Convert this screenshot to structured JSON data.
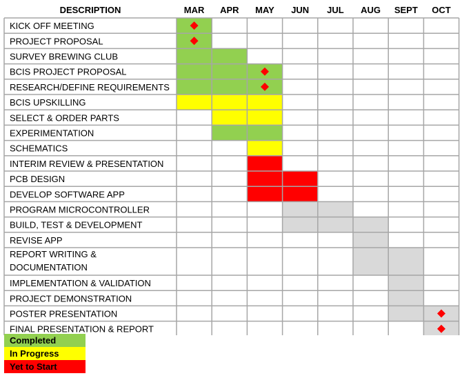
{
  "chart_data": {
    "type": "gantt",
    "header": {
      "description": "DESCRIPTION"
    },
    "months": [
      "MAR",
      "APR",
      "MAY",
      "JUN",
      "JUL",
      "AUG",
      "SEPT",
      "OCT"
    ],
    "colors": {
      "completed": "#92D050",
      "in_progress": "#FFFF00",
      "yet_to_start": "#FF0000",
      "planned": "#D9D9D9",
      "milestone": "#FF0000",
      "grid": "#A6A6A6"
    },
    "tasks": [
      {
        "label": [
          "KICK OFF MEETING"
        ],
        "start": 0,
        "end": 1,
        "status": "completed",
        "milestone": 0.5
      },
      {
        "label": [
          "PROJECT PROPOSAL"
        ],
        "start": 0,
        "end": 1,
        "status": "completed",
        "milestone": 0.5
      },
      {
        "label": [
          "SURVEY BREWING CLUB"
        ],
        "start": 0,
        "end": 2,
        "status": "completed"
      },
      {
        "label": [
          "BCIS PROJECT PROPOSAL"
        ],
        "start": 0,
        "end": 3,
        "status": "completed",
        "milestone": 2.5
      },
      {
        "label": [
          "RESEARCH/DEFINE REQUIREMENTS"
        ],
        "start": 0,
        "end": 3,
        "status": "completed",
        "milestone": 2.5
      },
      {
        "label": [
          "BCIS UPSKILLING"
        ],
        "start": 0,
        "end": 3,
        "status": "in_progress"
      },
      {
        "label": [
          "SELECT & ORDER PARTS"
        ],
        "start": 1,
        "end": 3,
        "status": "in_progress"
      },
      {
        "label": [
          "EXPERIMENTATION"
        ],
        "start": 1,
        "end": 3,
        "status": "completed"
      },
      {
        "label": [
          "SCHEMATICS"
        ],
        "start": 2,
        "end": 3,
        "status": "in_progress"
      },
      {
        "label": [
          "INTERIM REVIEW & PRESENTATION"
        ],
        "start": 2,
        "end": 3,
        "status": "yet_to_start"
      },
      {
        "label": [
          "PCB DESIGN"
        ],
        "start": 2,
        "end": 4,
        "status": "yet_to_start"
      },
      {
        "label": [
          "DEVELOP SOFTWARE APP"
        ],
        "start": 2,
        "end": 4,
        "status": "yet_to_start"
      },
      {
        "label": [
          "PROGRAM MICROCONTROLLER"
        ],
        "start": 3,
        "end": 5,
        "status": "planned"
      },
      {
        "label": [
          "BUILD, TEST & DEVELOPMENT"
        ],
        "start": 3,
        "end": 6,
        "status": "planned"
      },
      {
        "label": [
          "REVISE APP"
        ],
        "start": 5,
        "end": 6,
        "status": "planned"
      },
      {
        "label": [
          "REPORT WRITING &",
          "DOCUMENTATION"
        ],
        "start": 5,
        "end": 7,
        "status": "planned"
      },
      {
        "label": [
          "IMPLEMENTATION & VALIDATION"
        ],
        "start": 6,
        "end": 7,
        "status": "planned"
      },
      {
        "label": [
          "PROJECT DEMONSTRATION"
        ],
        "start": 6,
        "end": 7,
        "status": "planned"
      },
      {
        "label": [
          "POSTER PRESENTATION"
        ],
        "start": 6,
        "end": 8,
        "status": "planned",
        "milestone": 7.5
      },
      {
        "label": [
          "FINAL PRESENTATION & REPORT"
        ],
        "start": 7,
        "end": 8,
        "status": "planned",
        "milestone": 7.5
      }
    ],
    "legend": [
      {
        "key": "completed",
        "label": "Completed"
      },
      {
        "key": "in_progress",
        "label": "In Progress"
      },
      {
        "key": "yet_to_start",
        "label": "Yet to Start"
      }
    ]
  }
}
